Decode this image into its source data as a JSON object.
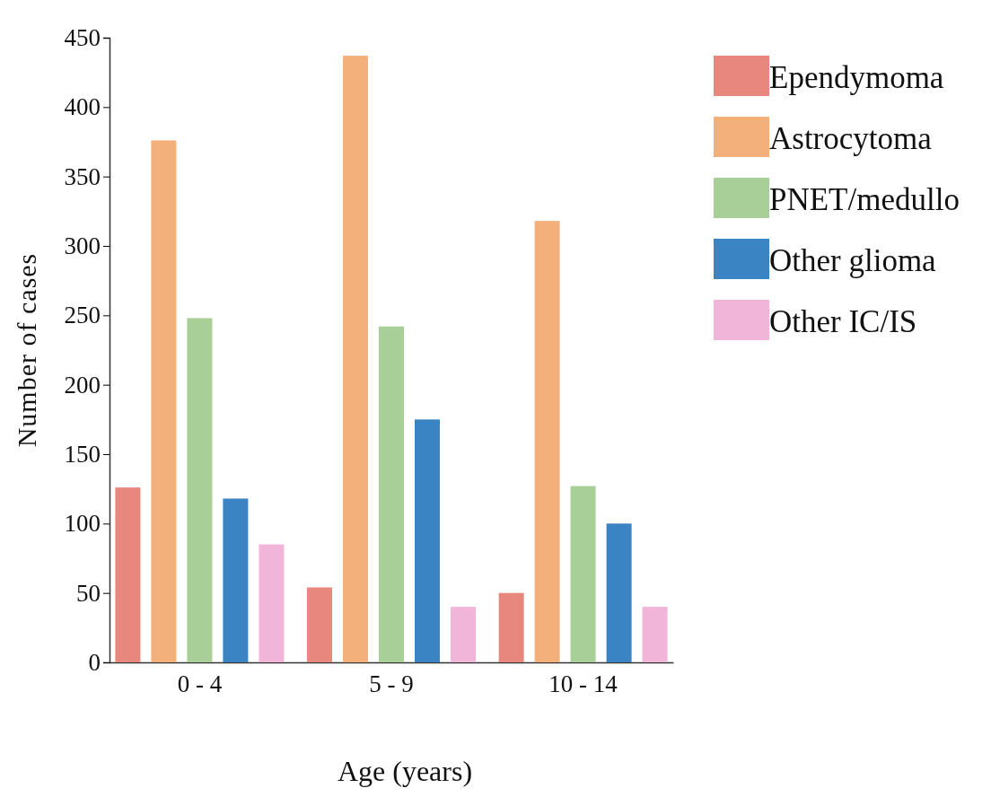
{
  "chart_data": {
    "type": "bar",
    "xlabel": "Age (years)",
    "ylabel": "Number of cases",
    "categories": [
      "0 - 4",
      "5 - 9",
      "10 - 14"
    ],
    "series": [
      {
        "name": "Ependymoma",
        "color": "#e8877e",
        "values": [
          126,
          54,
          50
        ]
      },
      {
        "name": "Astrocytoma",
        "color": "#f4b07a",
        "values": [
          376,
          437,
          318
        ]
      },
      {
        "name": "PNET/medullo",
        "color": "#a8cf98",
        "values": [
          248,
          242,
          127
        ]
      },
      {
        "name": "Other glioma",
        "color": "#3b84c4",
        "values": [
          118,
          175,
          100
        ]
      },
      {
        "name": "Other IC/IS",
        "color": "#f0b5d9",
        "values": [
          85,
          40,
          40
        ]
      }
    ],
    "ylim": [
      0,
      450
    ],
    "yticks": [
      0,
      50,
      100,
      150,
      200,
      250,
      300,
      350,
      400,
      450
    ],
    "grid": false,
    "legend": "top right"
  }
}
